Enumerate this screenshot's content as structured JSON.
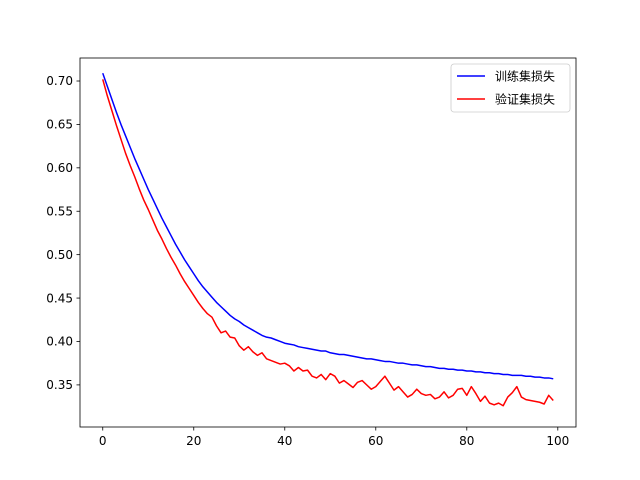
{
  "chart_data": {
    "type": "line",
    "title": "",
    "xlabel": "",
    "ylabel": "",
    "xlim": [
      -5,
      104
    ],
    "ylim": [
      0.3015,
      0.7265
    ],
    "xticks": [
      0,
      20,
      40,
      60,
      80,
      100
    ],
    "yticks": [
      0.35,
      0.4,
      0.45,
      0.5,
      0.55,
      0.6,
      0.65,
      0.7
    ],
    "ytick_labels": [
      "0.35",
      "0.40",
      "0.45",
      "0.50",
      "0.55",
      "0.60",
      "0.65",
      "0.70"
    ],
    "grid": false,
    "legend": "top-right",
    "x": [
      0,
      1,
      2,
      3,
      4,
      5,
      6,
      7,
      8,
      9,
      10,
      11,
      12,
      13,
      14,
      15,
      16,
      17,
      18,
      19,
      20,
      21,
      22,
      23,
      24,
      25,
      26,
      27,
      28,
      29,
      30,
      31,
      32,
      33,
      34,
      35,
      36,
      37,
      38,
      39,
      40,
      41,
      42,
      43,
      44,
      45,
      46,
      47,
      48,
      49,
      50,
      51,
      52,
      53,
      54,
      55,
      56,
      57,
      58,
      59,
      60,
      61,
      62,
      63,
      64,
      65,
      66,
      67,
      68,
      69,
      70,
      71,
      72,
      73,
      74,
      75,
      76,
      77,
      78,
      79,
      80,
      81,
      82,
      83,
      84,
      85,
      86,
      87,
      88,
      89,
      90,
      91,
      92,
      93,
      94,
      95,
      96,
      97,
      98,
      99
    ],
    "series": [
      {
        "name": "训练集损失",
        "color": "#0000ff",
        "values": [
          0.709,
          0.694,
          0.679,
          0.664,
          0.65,
          0.637,
          0.624,
          0.611,
          0.599,
          0.587,
          0.575,
          0.564,
          0.553,
          0.542,
          0.532,
          0.522,
          0.512,
          0.503,
          0.494,
          0.486,
          0.478,
          0.47,
          0.463,
          0.457,
          0.451,
          0.445,
          0.44,
          0.435,
          0.43,
          0.426,
          0.423,
          0.419,
          0.416,
          0.413,
          0.41,
          0.407,
          0.405,
          0.404,
          0.402,
          0.4,
          0.398,
          0.397,
          0.396,
          0.394,
          0.393,
          0.392,
          0.391,
          0.39,
          0.389,
          0.389,
          0.387,
          0.386,
          0.385,
          0.385,
          0.384,
          0.383,
          0.382,
          0.381,
          0.38,
          0.38,
          0.379,
          0.378,
          0.377,
          0.377,
          0.376,
          0.375,
          0.375,
          0.374,
          0.373,
          0.373,
          0.372,
          0.371,
          0.371,
          0.37,
          0.369,
          0.369,
          0.368,
          0.368,
          0.367,
          0.367,
          0.366,
          0.366,
          0.365,
          0.365,
          0.364,
          0.364,
          0.363,
          0.363,
          0.362,
          0.362,
          0.361,
          0.361,
          0.361,
          0.36,
          0.36,
          0.359,
          0.359,
          0.358,
          0.358,
          0.357
        ]
      },
      {
        "name": "验证集损失",
        "color": "#ff0000",
        "values": [
          0.702,
          0.683,
          0.666,
          0.649,
          0.633,
          0.617,
          0.603,
          0.59,
          0.576,
          0.563,
          0.552,
          0.54,
          0.528,
          0.518,
          0.507,
          0.497,
          0.488,
          0.478,
          0.469,
          0.461,
          0.453,
          0.445,
          0.438,
          0.432,
          0.428,
          0.418,
          0.41,
          0.412,
          0.405,
          0.404,
          0.395,
          0.39,
          0.394,
          0.388,
          0.384,
          0.387,
          0.38,
          0.378,
          0.376,
          0.374,
          0.375,
          0.372,
          0.366,
          0.37,
          0.366,
          0.367,
          0.36,
          0.358,
          0.362,
          0.356,
          0.363,
          0.36,
          0.352,
          0.355,
          0.351,
          0.347,
          0.353,
          0.355,
          0.35,
          0.345,
          0.348,
          0.354,
          0.36,
          0.352,
          0.344,
          0.348,
          0.342,
          0.336,
          0.339,
          0.345,
          0.34,
          0.338,
          0.339,
          0.334,
          0.336,
          0.342,
          0.335,
          0.338,
          0.345,
          0.346,
          0.338,
          0.348,
          0.34,
          0.331,
          0.337,
          0.329,
          0.327,
          0.329,
          0.326,
          0.336,
          0.341,
          0.348,
          0.336,
          0.333,
          0.332,
          0.331,
          0.33,
          0.328,
          0.338,
          0.332
        ]
      }
    ]
  }
}
